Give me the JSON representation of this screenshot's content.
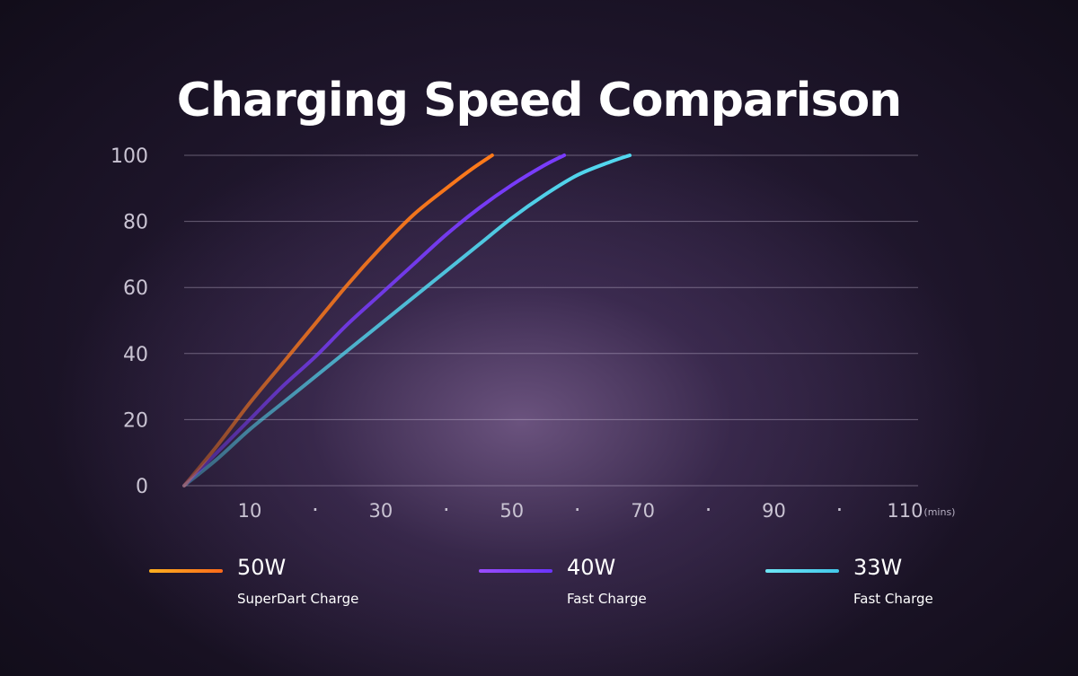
{
  "chart_data": {
    "type": "line",
    "title": "Charging Speed Comparison",
    "xlabel": "",
    "ylabel": "",
    "x_unit": "(mins)",
    "xlim": [
      0,
      112
    ],
    "ylim": [
      0,
      100
    ],
    "y_ticks": [
      "0",
      "20",
      "40",
      "60",
      "80",
      "100"
    ],
    "x_ticks": [
      {
        "x": 10,
        "label": "10"
      },
      {
        "x": 20,
        "label": "·"
      },
      {
        "x": 30,
        "label": "30"
      },
      {
        "x": 40,
        "label": "·"
      },
      {
        "x": 50,
        "label": "50"
      },
      {
        "x": 60,
        "label": "·"
      },
      {
        "x": 70,
        "label": "70"
      },
      {
        "x": 80,
        "label": "·"
      },
      {
        "x": 90,
        "label": "90"
      },
      {
        "x": 100,
        "label": "·"
      },
      {
        "x": 110,
        "label": "110"
      }
    ],
    "grid": true,
    "legend_position": "bottom",
    "series": [
      {
        "name": "50W",
        "subtitle": "SuperDart Charge",
        "color": "#ff7a1a",
        "x": [
          0,
          5,
          10,
          15,
          20,
          25,
          30,
          35,
          40,
          44,
          47
        ],
        "y": [
          0,
          12,
          25,
          37,
          49,
          61,
          72,
          82,
          90,
          96,
          100
        ]
      },
      {
        "name": "40W",
        "subtitle": "Fast Charge",
        "color": "#7a3cff",
        "x": [
          0,
          5,
          10,
          15,
          20,
          25,
          30,
          35,
          40,
          45,
          50,
          55,
          58
        ],
        "y": [
          0,
          10,
          20,
          30,
          39,
          49,
          58,
          67,
          76,
          84,
          91,
          97,
          100
        ]
      },
      {
        "name": "33W",
        "subtitle": "Fast Charge",
        "color": "#52d8f0",
        "x": [
          0,
          5,
          10,
          15,
          20,
          25,
          30,
          35,
          40,
          45,
          50,
          55,
          60,
          65,
          68
        ],
        "y": [
          0,
          8,
          17,
          25,
          33,
          41,
          49,
          57,
          65,
          73,
          81,
          88,
          94,
          98,
          100
        ]
      }
    ]
  }
}
